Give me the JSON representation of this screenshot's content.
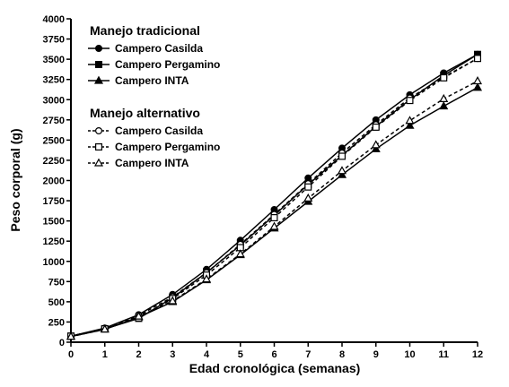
{
  "chart_data": {
    "type": "line",
    "xlabel": "Edad cronológica (semanas)",
    "ylabel": "Peso corporal (g)",
    "xlim": [
      0,
      12
    ],
    "ylim": [
      0,
      4000
    ],
    "x_ticks": [
      0,
      1,
      2,
      3,
      4,
      5,
      6,
      7,
      8,
      9,
      10,
      11,
      12
    ],
    "y_ticks": [
      0,
      250,
      500,
      750,
      1000,
      1250,
      1500,
      1750,
      2000,
      2250,
      2500,
      2750,
      3000,
      3250,
      3500,
      3750,
      4000
    ],
    "grid": false,
    "legend_placement": "top-left",
    "legend_groups": [
      {
        "title": "Manejo tradicional",
        "line_style": "solid",
        "fill": "filled"
      },
      {
        "title": "Manejo alternativo",
        "line_style": "dashed",
        "fill": "open"
      }
    ],
    "x": [
      0,
      1,
      2,
      3,
      4,
      5,
      6,
      7,
      8,
      9,
      10,
      11,
      12
    ],
    "series": [
      {
        "name": "Campero Casilda",
        "group": 0,
        "marker": "circle",
        "line_style": "solid",
        "fill": "filled",
        "values": [
          75,
          175,
          340,
          590,
          900,
          1260,
          1640,
          2030,
          2400,
          2750,
          3060,
          3330,
          3560
        ]
      },
      {
        "name": "Campero Pergamino",
        "group": 0,
        "marker": "square",
        "line_style": "solid",
        "fill": "filled",
        "values": [
          75,
          165,
          295,
          550,
          860,
          1200,
          1570,
          1950,
          2310,
          2670,
          3000,
          3300,
          3560
        ]
      },
      {
        "name": "Campero INTA",
        "group": 0,
        "marker": "triangle",
        "line_style": "solid",
        "fill": "filled",
        "values": [
          70,
          160,
          310,
          500,
          770,
          1080,
          1410,
          1740,
          2070,
          2390,
          2680,
          2920,
          3150
        ]
      },
      {
        "name": "Campero Casilda",
        "group": 1,
        "marker": "circle",
        "line_style": "dashed",
        "fill": "open",
        "values": [
          75,
          170,
          330,
          560,
          860,
          1210,
          1580,
          1960,
          2340,
          2690,
          3020,
          3280,
          3510
        ]
      },
      {
        "name": "Campero Pergamino",
        "group": 1,
        "marker": "square",
        "line_style": "dashed",
        "fill": "open",
        "values": [
          75,
          165,
          300,
          540,
          830,
          1170,
          1540,
          1920,
          2300,
          2660,
          2990,
          3270,
          3510
        ]
      },
      {
        "name": "Campero INTA",
        "group": 1,
        "marker": "triangle",
        "line_style": "dashed",
        "fill": "open",
        "values": [
          70,
          160,
          320,
          510,
          780,
          1090,
          1430,
          1780,
          2120,
          2440,
          2740,
          3010,
          3230
        ]
      }
    ]
  }
}
